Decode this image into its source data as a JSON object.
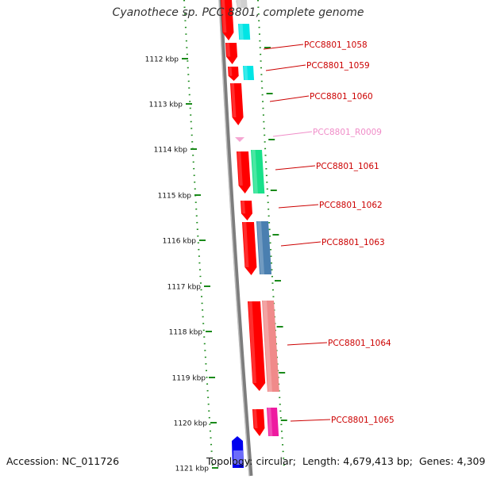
{
  "title": "Cyanothece sp. PCC 8801, complete genome",
  "footer": {
    "accession_label": "Accession:",
    "accession": "NC_011726",
    "topology_label": "Topology:",
    "topology": "circular;",
    "length_label": "Length:",
    "length": "4,679,413 bp;",
    "genes_label": "Genes:",
    "genes": "4,309"
  },
  "kbp_ticks": [
    "1112 kbp",
    "1113 kbp",
    "1114 kbp",
    "1115 kbp",
    "1116 kbp",
    "1117 kbp",
    "1118 kbp",
    "1119 kbp",
    "1120 kbp",
    "1121 kbp"
  ],
  "genes": [
    {
      "label": "PCC8801_1058",
      "color": "#cc0000"
    },
    {
      "label": "PCC8801_1059",
      "color": "#cc0000"
    },
    {
      "label": "PCC8801_1060",
      "color": "#cc0000"
    },
    {
      "label": "PCC8801_R0009",
      "color": "#f08cc8"
    },
    {
      "label": "PCC8801_1061",
      "color": "#cc0000"
    },
    {
      "label": "PCC8801_1062",
      "color": "#cc0000"
    },
    {
      "label": "PCC8801_1063",
      "color": "#cc0000"
    },
    {
      "label": "PCC8801_1064",
      "color": "#cc0000"
    },
    {
      "label": "PCC8801_1065",
      "color": "#cc0000"
    }
  ],
  "colors": {
    "cds": "#ff0000",
    "rrna": "#f5a6d2",
    "blue_feature": "#0000ee",
    "scale_dots": "#1a8a1a",
    "backbone": "#8a8a8a"
  }
}
